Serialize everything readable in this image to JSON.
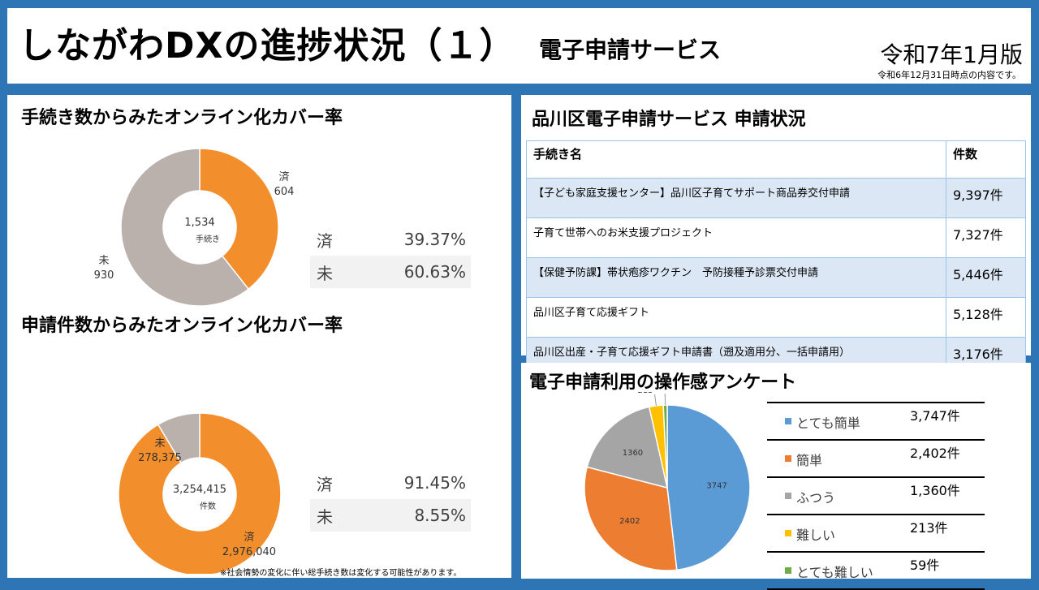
{
  "header": {
    "title": "しながわDXの進捗状況（１）",
    "subtitle": "電子申請サービス",
    "edition": "令和7年1月版",
    "as_of": "令和6年12月31日時点の内容です。"
  },
  "procedures_coverage": {
    "title": "手続き数からみたオンライン化カバー率",
    "chart_data": {
      "type": "pie",
      "categories": [
        "済",
        "未"
      ],
      "values": [
        604,
        930
      ],
      "center_value": "1,534",
      "center_unit": "手続き",
      "slice_labels": [
        {
          "name": "済",
          "value": "604"
        },
        {
          "name": "未",
          "value": "930"
        }
      ],
      "colors": [
        "#f28e2b",
        "#bab0ac"
      ]
    },
    "stats": [
      {
        "label": "済",
        "percent": "39.37%"
      },
      {
        "label": "未",
        "percent": "60.63%"
      }
    ]
  },
  "applications_coverage": {
    "title": "申請件数からみたオンライン化カバー率",
    "chart_data": {
      "type": "pie",
      "categories": [
        "済",
        "未"
      ],
      "values": [
        2976040,
        278375
      ],
      "center_value": "3,254,415",
      "center_unit": "件数",
      "slice_labels": [
        {
          "name": "済",
          "value": "2,976,040"
        },
        {
          "name": "未",
          "value": "278,375"
        }
      ],
      "colors": [
        "#f28e2b",
        "#bab0ac"
      ]
    },
    "stats": [
      {
        "label": "済",
        "percent": "91.45%"
      },
      {
        "label": "未",
        "percent": "8.55%"
      }
    ],
    "footnote": "※社会情勢の変化に伴い総手続き数は変化する可能性があります。"
  },
  "applications_table": {
    "title": "品川区電子申請サービス 申請状況",
    "chart_data": {
      "type": "table",
      "columns": [
        "手続き名",
        "件数"
      ],
      "rows": [
        [
          "【子ども家庭支援センター】品川区子育てサポート商品券交付申請",
          "9,397件"
        ],
        [
          "子育て世帯へのお米支援プロジェクト",
          "7,327件"
        ],
        [
          "【保健予防課】帯状疱疹ワクチン　予防接種予診票交付申請",
          "5,446件"
        ],
        [
          "品川区子育て応援ギフト",
          "5,128件"
        ],
        [
          "品川区出産・子育て応援ギフト申請書（遡及適用分、一括申請用）",
          "3,176件"
        ]
      ]
    }
  },
  "survey": {
    "title": "電子申請利用の操作感アンケート",
    "chart_data": {
      "type": "pie",
      "categories": [
        "とても簡単",
        "簡単",
        "ふつう",
        "難しい",
        "とても難しい"
      ],
      "values": [
        3747,
        2402,
        1360,
        213,
        59
      ],
      "value_labels": [
        "3747",
        "2402",
        "1360",
        "213",
        "59"
      ],
      "colors": [
        "#5b9bd5",
        "#ed7d31",
        "#a5a5a5",
        "#ffc000",
        "#70ad47"
      ]
    },
    "legend_counts": [
      "3,747件",
      "2,402件",
      "1,360件",
      "213件",
      "59件"
    ]
  }
}
